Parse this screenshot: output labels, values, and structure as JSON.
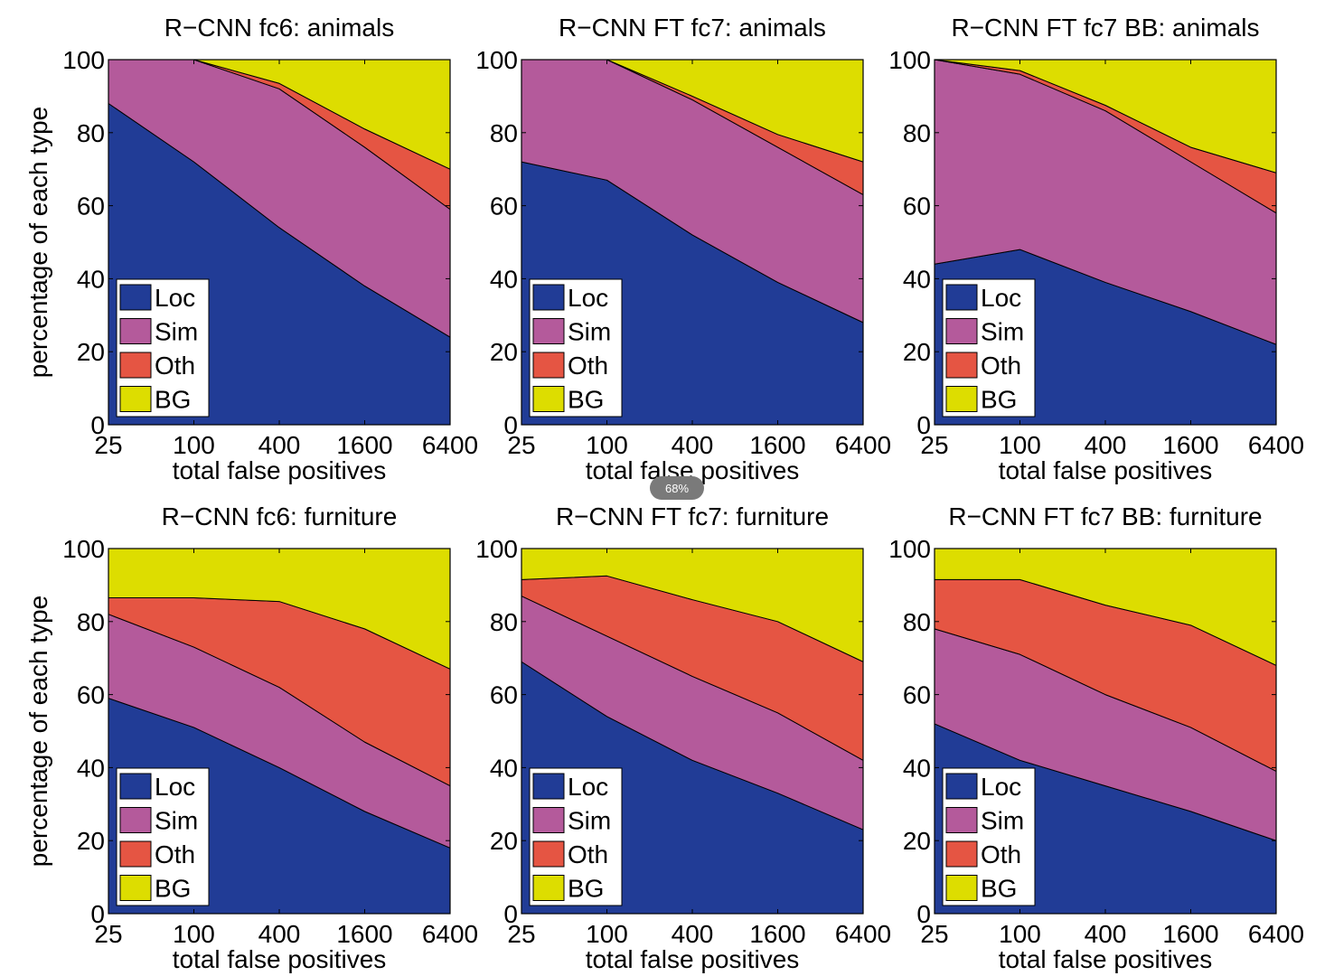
{
  "figure": {
    "shared": {
      "xlabel": "total false positives",
      "ylabel": "percentage of each type",
      "x_ticks": [
        "25",
        "100",
        "400",
        "1600",
        "6400"
      ],
      "y_ticks": [
        "0",
        "20",
        "40",
        "60",
        "80",
        "100"
      ],
      "legend": [
        "Loc",
        "Sim",
        "Oth",
        "BG"
      ]
    },
    "colors": {
      "Loc": "#213c96",
      "Sim": "#b45a9b",
      "Oth": "#e55543",
      "BG": "#dddd00"
    }
  },
  "chart_data": [
    {
      "type": "area",
      "stacked": true,
      "title": "R−CNN fc6: animals",
      "xlabel": "total false positives",
      "ylabel": "percentage of each type",
      "x": [
        25,
        100,
        400,
        1600,
        6400
      ],
      "xscale": "log",
      "ylim": [
        0,
        100
      ],
      "legend": "bottom-left",
      "series": [
        {
          "name": "Loc",
          "values": [
            88,
            72,
            54,
            38,
            24
          ]
        },
        {
          "name": "Sim",
          "values": [
            12,
            28,
            38,
            38,
            35
          ]
        },
        {
          "name": "Oth",
          "values": [
            0,
            0,
            1.5,
            5,
            11
          ]
        },
        {
          "name": "BG",
          "values": [
            0,
            0,
            6.5,
            19,
            30
          ]
        }
      ]
    },
    {
      "type": "area",
      "stacked": true,
      "title": "R−CNN FT fc7: animals",
      "xlabel": "total false positives",
      "ylabel": "",
      "x": [
        25,
        100,
        400,
        1600,
        6400
      ],
      "xscale": "log",
      "ylim": [
        0,
        100
      ],
      "legend": "bottom-left",
      "series": [
        {
          "name": "Loc",
          "values": [
            72,
            67,
            52,
            39,
            28
          ]
        },
        {
          "name": "Sim",
          "values": [
            28,
            33,
            37,
            37,
            35
          ]
        },
        {
          "name": "Oth",
          "values": [
            0,
            0,
            1,
            3.5,
            9
          ]
        },
        {
          "name": "BG",
          "values": [
            0,
            0,
            10,
            20.5,
            28
          ]
        }
      ]
    },
    {
      "type": "area",
      "stacked": true,
      "title": "R−CNN FT fc7 BB: animals",
      "xlabel": "total false positives",
      "ylabel": "",
      "x": [
        25,
        100,
        400,
        1600,
        6400
      ],
      "xscale": "log",
      "ylim": [
        0,
        100
      ],
      "legend": "bottom-left",
      "series": [
        {
          "name": "Loc",
          "values": [
            44,
            48,
            39,
            31,
            22
          ]
        },
        {
          "name": "Sim",
          "values": [
            56,
            48,
            47,
            41,
            36
          ]
        },
        {
          "name": "Oth",
          "values": [
            0,
            1,
            1.5,
            4,
            11
          ]
        },
        {
          "name": "BG",
          "values": [
            0,
            3,
            12.5,
            24,
            31
          ]
        }
      ]
    },
    {
      "type": "area",
      "stacked": true,
      "title": "R−CNN fc6: furniture",
      "xlabel": "total false positives",
      "ylabel": "percentage of each type",
      "x": [
        25,
        100,
        400,
        1600,
        6400
      ],
      "xscale": "log",
      "ylim": [
        0,
        100
      ],
      "legend": "bottom-left",
      "series": [
        {
          "name": "Loc",
          "values": [
            59,
            51,
            40,
            28,
            18
          ]
        },
        {
          "name": "Sim",
          "values": [
            23,
            22,
            22,
            19,
            17
          ]
        },
        {
          "name": "Oth",
          "values": [
            4.5,
            13.5,
            23.5,
            31,
            32
          ]
        },
        {
          "name": "BG",
          "values": [
            13.5,
            13.5,
            14.5,
            22,
            33
          ]
        }
      ]
    },
    {
      "type": "area",
      "stacked": true,
      "title": "R−CNN FT fc7: furniture",
      "xlabel": "total false positives",
      "ylabel": "",
      "x": [
        25,
        100,
        400,
        1600,
        6400
      ],
      "xscale": "log",
      "ylim": [
        0,
        100
      ],
      "legend": "bottom-left",
      "series": [
        {
          "name": "Loc",
          "values": [
            69,
            54,
            42,
            33,
            23
          ]
        },
        {
          "name": "Sim",
          "values": [
            18,
            22,
            23,
            22,
            19
          ]
        },
        {
          "name": "Oth",
          "values": [
            4.5,
            16.5,
            21,
            25,
            27
          ]
        },
        {
          "name": "BG",
          "values": [
            8.5,
            7.5,
            14,
            20,
            31
          ]
        }
      ]
    },
    {
      "type": "area",
      "stacked": true,
      "title": "R−CNN FT fc7 BB: furniture",
      "xlabel": "total false positives",
      "ylabel": "",
      "x": [
        25,
        100,
        400,
        1600,
        6400
      ],
      "xscale": "log",
      "ylim": [
        0,
        100
      ],
      "legend": "bottom-left",
      "series": [
        {
          "name": "Loc",
          "values": [
            52,
            42,
            35,
            28,
            20
          ]
        },
        {
          "name": "Sim",
          "values": [
            26,
            29,
            25,
            23,
            19
          ]
        },
        {
          "name": "Oth",
          "values": [
            13.5,
            20.5,
            24.5,
            28,
            29
          ]
        },
        {
          "name": "BG",
          "values": [
            8.5,
            8.5,
            15.5,
            21,
            32
          ]
        }
      ]
    }
  ],
  "overlay": {
    "zoom_badge": "68%"
  }
}
